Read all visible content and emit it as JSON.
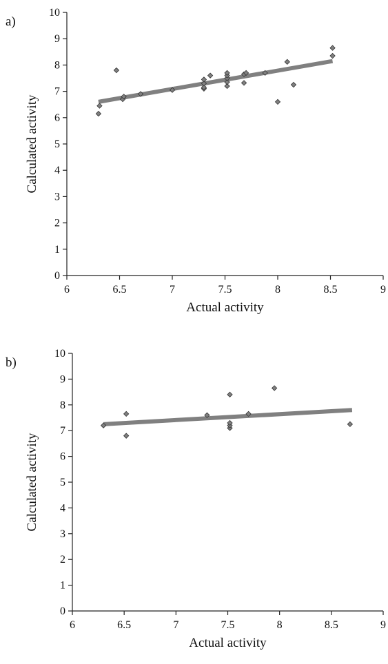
{
  "chart_data": [
    {
      "panel_label": "a)",
      "type": "scatter",
      "xlabel": "Actual activity",
      "ylabel": "Calculated activity",
      "xlim": [
        6,
        9
      ],
      "ylim": [
        0,
        10
      ],
      "xticks": [
        "6",
        "6.5",
        "7",
        "7.5",
        "8",
        "8.5",
        "9"
      ],
      "yticks": [
        "0",
        "1",
        "2",
        "3",
        "4",
        "5",
        "6",
        "7",
        "8",
        "9",
        "10"
      ],
      "grid": false,
      "point_color": "#808080",
      "line_color": "#808080",
      "points": [
        {
          "x": 6.3,
          "y": 6.15
        },
        {
          "x": 6.31,
          "y": 6.45
        },
        {
          "x": 6.47,
          "y": 7.8
        },
        {
          "x": 6.53,
          "y": 6.7
        },
        {
          "x": 6.54,
          "y": 6.8
        },
        {
          "x": 6.7,
          "y": 6.9
        },
        {
          "x": 7.0,
          "y": 7.05
        },
        {
          "x": 7.3,
          "y": 7.1
        },
        {
          "x": 7.3,
          "y": 7.15
        },
        {
          "x": 7.3,
          "y": 7.3
        },
        {
          "x": 7.3,
          "y": 7.45
        },
        {
          "x": 7.36,
          "y": 7.6
        },
        {
          "x": 7.52,
          "y": 7.2
        },
        {
          "x": 7.52,
          "y": 7.35
        },
        {
          "x": 7.52,
          "y": 7.5
        },
        {
          "x": 7.52,
          "y": 7.6
        },
        {
          "x": 7.52,
          "y": 7.7
        },
        {
          "x": 7.68,
          "y": 7.32
        },
        {
          "x": 7.68,
          "y": 7.65
        },
        {
          "x": 7.7,
          "y": 7.7
        },
        {
          "x": 7.88,
          "y": 7.7
        },
        {
          "x": 8.0,
          "y": 6.6
        },
        {
          "x": 8.09,
          "y": 8.12
        },
        {
          "x": 8.15,
          "y": 7.25
        },
        {
          "x": 8.52,
          "y": 8.35
        },
        {
          "x": 8.52,
          "y": 8.65
        }
      ],
      "trendline": {
        "x": [
          6.3,
          8.52
        ],
        "y": [
          6.6,
          8.15
        ]
      }
    },
    {
      "panel_label": "b)",
      "type": "scatter",
      "xlabel": "Actual activity",
      "ylabel": "Calculated activity",
      "xlim": [
        6,
        9
      ],
      "ylim": [
        0,
        10
      ],
      "xticks": [
        "6",
        "6.5",
        "7",
        "7.5",
        "8",
        "8.5",
        "9"
      ],
      "yticks": [
        "0",
        "1",
        "2",
        "3",
        "4",
        "5",
        "6",
        "7",
        "8",
        "9",
        "10"
      ],
      "grid": false,
      "point_color": "#808080",
      "line_color": "#808080",
      "points": [
        {
          "x": 6.3,
          "y": 7.2
        },
        {
          "x": 6.52,
          "y": 6.8
        },
        {
          "x": 6.52,
          "y": 7.65
        },
        {
          "x": 7.3,
          "y": 7.6
        },
        {
          "x": 7.52,
          "y": 7.1
        },
        {
          "x": 7.52,
          "y": 7.2
        },
        {
          "x": 7.52,
          "y": 7.3
        },
        {
          "x": 7.52,
          "y": 8.4
        },
        {
          "x": 7.7,
          "y": 7.65
        },
        {
          "x": 7.95,
          "y": 8.65
        },
        {
          "x": 8.68,
          "y": 7.25
        }
      ],
      "trendline": {
        "x": [
          6.3,
          8.7
        ],
        "y": [
          7.25,
          7.8
        ]
      }
    }
  ]
}
